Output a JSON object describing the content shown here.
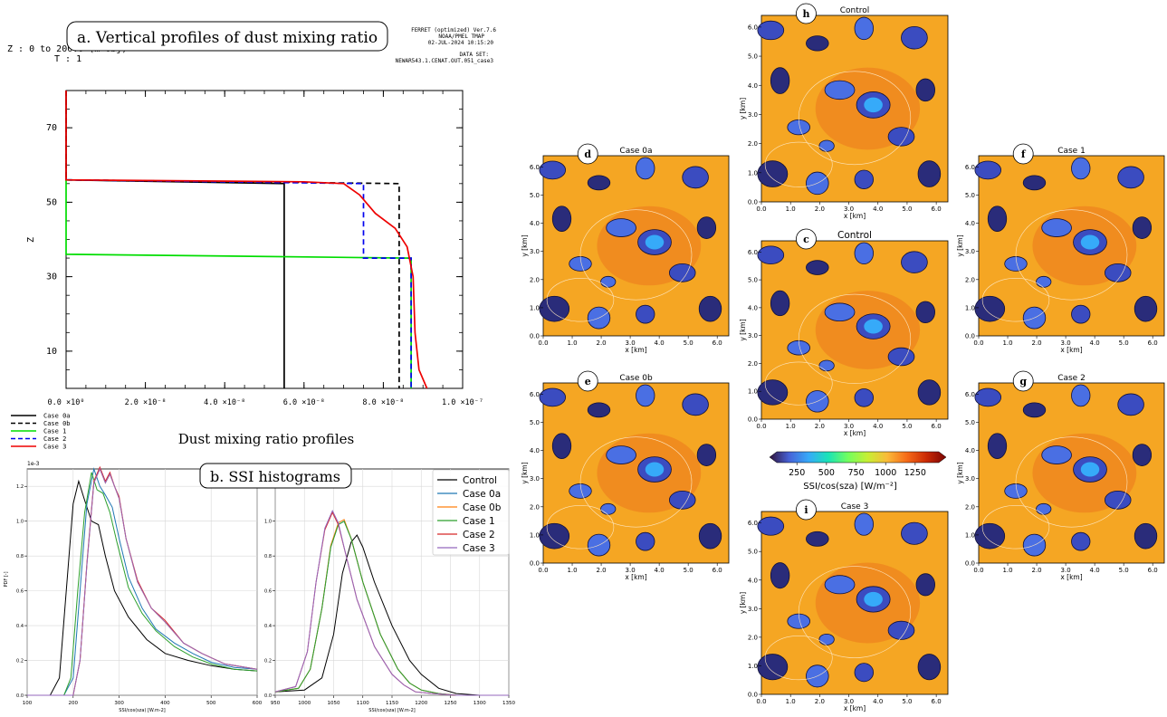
{
  "panel_a": {
    "badge": "a. Vertical profiles of dust mixing ratio",
    "header_left_1": "Z : 0 to 200.0 (m-obj)",
    "header_left_2": "T : 1",
    "header_right_1": "FERRET (optimized) Ver.7.6",
    "header_right_2": "NOAA/PMEL TMAP",
    "header_right_3": "02-JUL-2024 10:15:20",
    "header_right_4": "DATA SET:",
    "header_right_5": "NEWAR543.1.CENAT.OUT.051_case3",
    "bottom_title": "Dust mixing ratio profiles"
  },
  "panel_b": {
    "badge": "b. SSI histograms",
    "y_exponent": "1e-3",
    "ylabel": "PDF [-]",
    "xlabel": "SSI/cos(sza) [W.m-2]"
  },
  "maps": {
    "xlabel": "x [km]",
    "ylabel": "y [km]",
    "ticks": [
      "0.0",
      "1.0",
      "2.0",
      "3.0",
      "4.0",
      "5.0",
      "6.0"
    ],
    "colorbar_label": "SSI/cos(sza) [W/m⁻²]",
    "colorbar_ticks": [
      "250",
      "500",
      "750",
      "1000",
      "1250"
    ],
    "colorbar_stops": [
      "#30123b",
      "#4662d7",
      "#36aaf9",
      "#1ae4b6",
      "#72fe5e",
      "#c7ef34",
      "#faba39",
      "#f66b19",
      "#ca2a04",
      "#7a0403"
    ],
    "panels": [
      {
        "letter": "h",
        "title": "Control"
      },
      {
        "letter": "d",
        "title": "Case 0a"
      },
      {
        "letter": "f",
        "title": "Case 1"
      },
      {
        "letter": "c",
        "title": "Control"
      },
      {
        "letter": "e",
        "title": "Case 0b"
      },
      {
        "letter": "g",
        "title": "Case 2"
      },
      {
        "letter": "i",
        "title": "Case 3"
      }
    ]
  },
  "chart_data": [
    {
      "type": "line",
      "xlabel": "",
      "ylabel": "Z",
      "xlim": [
        0,
        1e-07
      ],
      "ylim": [
        0,
        80
      ],
      "x_ticks": [
        "0.0 ×10⁰",
        "2.0 ×10⁻⁸",
        "4.0 ×10⁻⁸",
        "6.0 ×10⁻⁸",
        "8.0 ×10⁻⁸",
        "1.0 ×10⁻⁷"
      ],
      "y_ticks": [
        "10",
        "30",
        "50",
        "70"
      ],
      "legend": [
        "Case 0a",
        "Case 0b",
        "Case 1",
        "Case 2",
        "Case 3"
      ],
      "series": [
        {
          "name": "Case 0a",
          "color": "#000000",
          "dash": "solid",
          "points": [
            [
              0,
              80
            ],
            [
              0,
              56
            ],
            [
              5.5e-08,
              55
            ],
            [
              5.5e-08,
              0
            ]
          ]
        },
        {
          "name": "Case 0b",
          "color": "#000000",
          "dash": "dashed",
          "points": [
            [
              0,
              80
            ],
            [
              0,
              56
            ],
            [
              8.4e-08,
              55
            ],
            [
              8.4e-08,
              0
            ]
          ]
        },
        {
          "name": "Case 1",
          "color": "#00dd00",
          "dash": "solid",
          "points": [
            [
              0,
              56
            ],
            [
              0,
              36
            ],
            [
              8.7e-08,
              35
            ],
            [
              8.7e-08,
              0
            ]
          ]
        },
        {
          "name": "Case 2",
          "color": "#0000ee",
          "dash": "dashed",
          "points": [
            [
              0,
              56
            ],
            [
              7.5e-08,
              55
            ],
            [
              7.5e-08,
              35
            ],
            [
              8.7e-08,
              35
            ],
            [
              8.7e-08,
              0
            ]
          ]
        },
        {
          "name": "Case 3",
          "color": "#ee0000",
          "dash": "solid",
          "points": [
            [
              0,
              80
            ],
            [
              0,
              56
            ],
            [
              6e-08,
              55.5
            ],
            [
              7e-08,
              55
            ],
            [
              7.4e-08,
              52
            ],
            [
              7.8e-08,
              47
            ],
            [
              8.3e-08,
              43
            ],
            [
              8.6e-08,
              38
            ],
            [
              8.75e-08,
              30
            ],
            [
              8.8e-08,
              15
            ],
            [
              8.9e-08,
              5
            ],
            [
              9.1e-08,
              0
            ]
          ]
        }
      ]
    },
    {
      "type": "line",
      "xlabel": "SSI/cos(sza) [W.m-2]",
      "ylabel": "PDF [-]",
      "xlim": [
        100,
        600
      ],
      "ylim": [
        0,
        1.3
      ],
      "x_ticks": [
        "100",
        "200",
        "300",
        "400",
        "500",
        "600"
      ],
      "y_ticks": [
        "0.0",
        "0.2",
        "0.4",
        "0.6",
        "0.8",
        "1.0",
        "1.2"
      ],
      "series": [
        {
          "name": "Control",
          "color": "#000000",
          "x": [
            100,
            150,
            170,
            185,
            200,
            212,
            225,
            240,
            255,
            270,
            290,
            320,
            360,
            400,
            450,
            500,
            550,
            600
          ],
          "y": [
            0,
            0,
            0.1,
            0.6,
            1.1,
            1.23,
            1.12,
            1.0,
            0.98,
            0.8,
            0.6,
            0.45,
            0.32,
            0.24,
            0.2,
            0.17,
            0.15,
            0.14
          ]
        },
        {
          "name": "Case 0a",
          "color": "#1f77b4",
          "x": [
            100,
            180,
            200,
            215,
            230,
            245,
            258,
            270,
            285,
            300,
            320,
            350,
            380,
            420,
            460,
            500,
            550,
            600
          ],
          "y": [
            0,
            0,
            0.1,
            0.6,
            1.1,
            1.3,
            1.2,
            1.15,
            1.08,
            0.9,
            0.68,
            0.5,
            0.38,
            0.3,
            0.24,
            0.19,
            0.16,
            0.15
          ]
        },
        {
          "name": "Case 0b",
          "color": "#ff7f0e",
          "x": [
            100,
            200,
            215,
            230,
            245,
            258,
            270,
            280,
            290,
            300,
            315,
            340,
            370,
            400,
            440,
            480,
            530,
            600
          ],
          "y": [
            0,
            0,
            0.2,
            0.75,
            1.22,
            1.3,
            1.22,
            1.27,
            1.2,
            1.13,
            0.9,
            0.65,
            0.5,
            0.42,
            0.3,
            0.24,
            0.18,
            0.15
          ]
        },
        {
          "name": "Case 1",
          "color": "#2ca02c",
          "x": [
            100,
            180,
            195,
            210,
            225,
            240,
            252,
            265,
            280,
            295,
            320,
            350,
            380,
            420,
            460,
            500,
            550,
            600
          ],
          "y": [
            0,
            0,
            0.1,
            0.6,
            1.05,
            1.28,
            1.18,
            1.16,
            1.05,
            0.88,
            0.62,
            0.47,
            0.37,
            0.28,
            0.22,
            0.18,
            0.15,
            0.14
          ]
        },
        {
          "name": "Case 2",
          "color": "#d62728",
          "x": [
            100,
            200,
            215,
            230,
            245,
            258,
            270,
            280,
            290,
            300,
            315,
            340,
            370,
            400,
            440,
            480,
            530,
            600
          ],
          "y": [
            0,
            0,
            0.2,
            0.76,
            1.23,
            1.31,
            1.23,
            1.28,
            1.2,
            1.14,
            0.9,
            0.66,
            0.5,
            0.43,
            0.3,
            0.24,
            0.18,
            0.15
          ]
        },
        {
          "name": "Case 3",
          "color": "#9467bd",
          "x": [
            100,
            200,
            215,
            230,
            245,
            258,
            270,
            280,
            290,
            300,
            315,
            340,
            370,
            400,
            440,
            480,
            530,
            600
          ],
          "y": [
            0,
            0,
            0.2,
            0.75,
            1.22,
            1.3,
            1.22,
            1.27,
            1.2,
            1.13,
            0.9,
            0.65,
            0.5,
            0.42,
            0.3,
            0.24,
            0.18,
            0.15
          ]
        }
      ]
    },
    {
      "type": "line",
      "xlabel": "SSI/cos(sza) [W.m-2]",
      "ylabel": "",
      "xlim": [
        950,
        1350
      ],
      "ylim": [
        0,
        1.3
      ],
      "x_ticks": [
        "950",
        "1000",
        "1050",
        "1100",
        "1150",
        "1200",
        "1250",
        "1300",
        "1350"
      ],
      "y_ticks": [
        "0.0",
        "0.2",
        "0.4",
        "0.6",
        "0.8",
        "1.0",
        "1.2"
      ],
      "legend": [
        "Control",
        "Case 0a",
        "Case 0b",
        "Case 1",
        "Case 2",
        "Case 3"
      ],
      "series": [
        {
          "name": "Control",
          "color": "#000000",
          "x": [
            950,
            1000,
            1030,
            1050,
            1065,
            1080,
            1090,
            1100,
            1120,
            1150,
            1180,
            1200,
            1230,
            1260,
            1300,
            1350
          ],
          "y": [
            0.02,
            0.03,
            0.1,
            0.35,
            0.7,
            0.88,
            0.92,
            0.85,
            0.65,
            0.4,
            0.2,
            0.12,
            0.04,
            0.01,
            0,
            0
          ]
        },
        {
          "name": "Case 0a",
          "color": "#1f77b4",
          "x": [
            950,
            990,
            1010,
            1030,
            1045,
            1058,
            1068,
            1080,
            1100,
            1130,
            1160,
            1180,
            1200,
            1230,
            1260,
            1350
          ],
          "y": [
            0.02,
            0.04,
            0.15,
            0.5,
            0.85,
            0.98,
            1.0,
            0.9,
            0.65,
            0.35,
            0.15,
            0.07,
            0.03,
            0.01,
            0,
            0
          ]
        },
        {
          "name": "Case 0b",
          "color": "#ff7f0e",
          "x": [
            950,
            990,
            1010,
            1030,
            1045,
            1058,
            1068,
            1080,
            1100,
            1130,
            1160,
            1180,
            1200,
            1230,
            1260,
            1350
          ],
          "y": [
            0.02,
            0.04,
            0.15,
            0.5,
            0.86,
            0.99,
            1.01,
            0.9,
            0.65,
            0.35,
            0.15,
            0.07,
            0.03,
            0.01,
            0,
            0
          ]
        },
        {
          "name": "Case 1",
          "color": "#2ca02c",
          "x": [
            950,
            990,
            1010,
            1030,
            1045,
            1058,
            1068,
            1080,
            1100,
            1130,
            1160,
            1180,
            1200,
            1230,
            1260,
            1350
          ],
          "y": [
            0.02,
            0.04,
            0.15,
            0.5,
            0.85,
            0.98,
            1.0,
            0.9,
            0.65,
            0.35,
            0.15,
            0.07,
            0.03,
            0.01,
            0,
            0
          ]
        },
        {
          "name": "Case 2",
          "color": "#d62728",
          "x": [
            950,
            985,
            1005,
            1020,
            1035,
            1048,
            1058,
            1070,
            1090,
            1120,
            1150,
            1170,
            1190,
            1220,
            1260,
            1350
          ],
          "y": [
            0.02,
            0.05,
            0.25,
            0.65,
            0.95,
            1.05,
            0.98,
            0.82,
            0.55,
            0.28,
            0.12,
            0.06,
            0.02,
            0.01,
            0,
            0
          ]
        },
        {
          "name": "Case 3",
          "color": "#9467bd",
          "x": [
            950,
            985,
            1005,
            1020,
            1035,
            1048,
            1058,
            1070,
            1090,
            1120,
            1150,
            1170,
            1190,
            1220,
            1260,
            1350
          ],
          "y": [
            0.02,
            0.05,
            0.25,
            0.65,
            0.96,
            1.06,
            0.99,
            0.82,
            0.55,
            0.28,
            0.12,
            0.06,
            0.02,
            0.01,
            0,
            0
          ]
        }
      ]
    }
  ]
}
